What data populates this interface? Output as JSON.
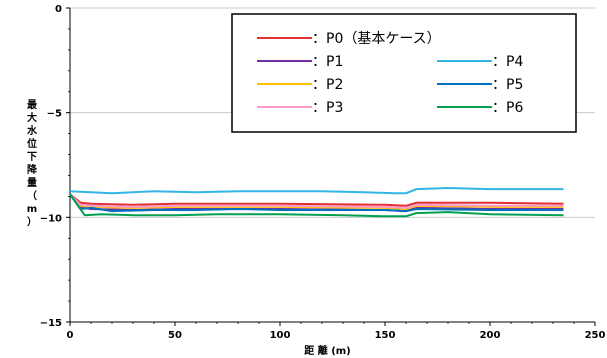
{
  "chart_data": {
    "type": "line",
    "xlabel": "距 離 (m)",
    "ylabel": "最大水位下降量（m）",
    "xlim": [
      0,
      250
    ],
    "ylim": [
      -15,
      0
    ],
    "x_ticks": [
      0,
      50,
      100,
      150,
      200,
      250
    ],
    "y_ticks": [
      0,
      -5,
      -10,
      -15
    ],
    "grid": "horizontal",
    "legend_position": "top-right",
    "series": [
      {
        "name": "：P0（基本ケース）",
        "color": "#e03030",
        "points": [
          [
            0,
            -8.9
          ],
          [
            5,
            -9.3
          ],
          [
            10,
            -9.35
          ],
          [
            30,
            -9.4
          ],
          [
            50,
            -9.35
          ],
          [
            100,
            -9.35
          ],
          [
            150,
            -9.4
          ],
          [
            160,
            -9.45
          ],
          [
            165,
            -9.3
          ],
          [
            200,
            -9.3
          ],
          [
            235,
            -9.35
          ]
        ]
      },
      {
        "name": "：P1",
        "color": "#7030a0",
        "points": [
          [
            0,
            -8.9
          ],
          [
            5,
            -9.5
          ],
          [
            10,
            -9.6
          ],
          [
            30,
            -9.65
          ],
          [
            50,
            -9.6
          ],
          [
            100,
            -9.6
          ],
          [
            150,
            -9.65
          ],
          [
            160,
            -9.7
          ],
          [
            165,
            -9.55
          ],
          [
            200,
            -9.6
          ],
          [
            235,
            -9.6
          ]
        ]
      },
      {
        "name": "：P2",
        "color": "#ffc000",
        "points": [
          [
            0,
            -8.9
          ],
          [
            5,
            -9.45
          ],
          [
            10,
            -9.5
          ],
          [
            30,
            -9.55
          ],
          [
            50,
            -9.5
          ],
          [
            100,
            -9.5
          ],
          [
            150,
            -9.55
          ],
          [
            160,
            -9.6
          ],
          [
            165,
            -9.45
          ],
          [
            200,
            -9.5
          ],
          [
            235,
            -9.5
          ]
        ]
      },
      {
        "name": "：P3",
        "color": "#ff99cc",
        "points": [
          [
            0,
            -8.9
          ],
          [
            5,
            -9.4
          ],
          [
            10,
            -9.45
          ],
          [
            30,
            -9.5
          ],
          [
            50,
            -9.45
          ],
          [
            100,
            -9.45
          ],
          [
            150,
            -9.5
          ],
          [
            160,
            -9.55
          ],
          [
            165,
            -9.4
          ],
          [
            200,
            -9.45
          ],
          [
            235,
            -9.45
          ]
        ]
      },
      {
        "name": "：P4",
        "color": "#33b5e5",
        "points": [
          [
            0,
            -8.75
          ],
          [
            10,
            -8.8
          ],
          [
            20,
            -8.85
          ],
          [
            40,
            -8.75
          ],
          [
            60,
            -8.8
          ],
          [
            80,
            -8.75
          ],
          [
            100,
            -8.75
          ],
          [
            120,
            -8.75
          ],
          [
            140,
            -8.8
          ],
          [
            155,
            -8.85
          ],
          [
            160,
            -8.85
          ],
          [
            165,
            -8.65
          ],
          [
            180,
            -8.6
          ],
          [
            200,
            -8.65
          ],
          [
            235,
            -8.65
          ]
        ]
      },
      {
        "name": "：P5",
        "color": "#0070c0",
        "points": [
          [
            0,
            -8.9
          ],
          [
            5,
            -9.6
          ],
          [
            10,
            -9.55
          ],
          [
            20,
            -9.7
          ],
          [
            40,
            -9.65
          ],
          [
            60,
            -9.65
          ],
          [
            80,
            -9.6
          ],
          [
            100,
            -9.65
          ],
          [
            120,
            -9.65
          ],
          [
            150,
            -9.65
          ],
          [
            160,
            -9.7
          ],
          [
            165,
            -9.6
          ],
          [
            200,
            -9.65
          ],
          [
            235,
            -9.65
          ]
        ]
      },
      {
        "name": "：P6",
        "color": "#00a050",
        "points": [
          [
            0,
            -8.9
          ],
          [
            7,
            -9.9
          ],
          [
            15,
            -9.85
          ],
          [
            30,
            -9.9
          ],
          [
            50,
            -9.9
          ],
          [
            70,
            -9.85
          ],
          [
            100,
            -9.85
          ],
          [
            130,
            -9.9
          ],
          [
            150,
            -9.95
          ],
          [
            160,
            -9.95
          ],
          [
            165,
            -9.8
          ],
          [
            180,
            -9.75
          ],
          [
            200,
            -9.85
          ],
          [
            235,
            -9.9
          ]
        ]
      }
    ],
    "legend_layout": [
      [
        "：P0（基本ケース）"
      ],
      [
        "：P1",
        "：P4"
      ],
      [
        "：P2",
        "：P5"
      ],
      [
        "：P3",
        "：P6"
      ]
    ]
  }
}
